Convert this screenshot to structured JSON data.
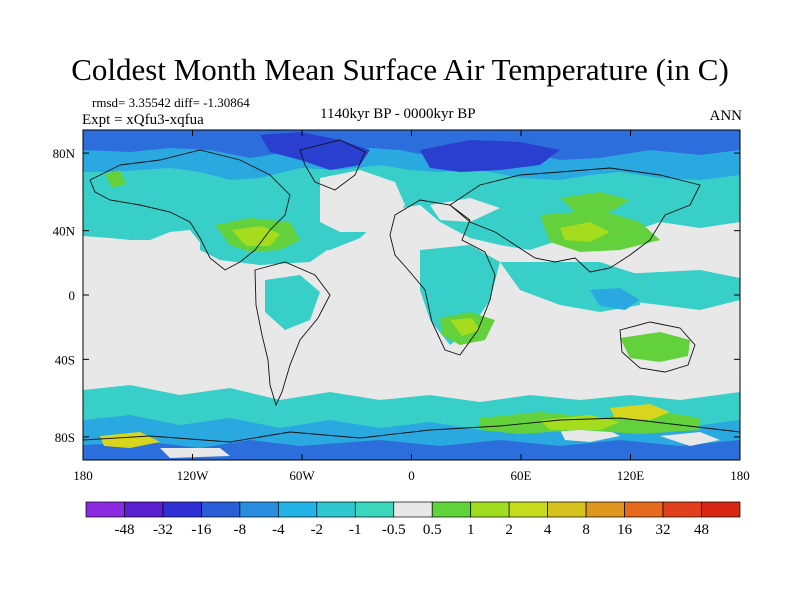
{
  "title": "Coldest Month Mean Surface Air Temperature (in C)",
  "stats": "rmsd= 3.35542 diff= -1.30864",
  "experiment": "Expt = xQfu3-xqfua",
  "period": "1140kyr BP - 0000kyr BP",
  "season": "ANN",
  "map": {
    "x_ticks": [
      "180",
      "120W",
      "60W",
      "0",
      "60E",
      "120E",
      "180"
    ],
    "y_ticks": [
      "80N",
      "40N",
      "0",
      "40S",
      "80S"
    ]
  },
  "colorbar": {
    "labels": [
      "-48",
      "-32",
      "-16",
      "-8",
      "-4",
      "-2",
      "-1",
      "-0.5",
      "0.5",
      "1",
      "2",
      "4",
      "8",
      "16",
      "32",
      "48"
    ],
    "colors": [
      "#8b2be2",
      "#5a1fd0",
      "#2f2fd6",
      "#2a5ed8",
      "#2a8ee0",
      "#22b4e6",
      "#30c8d0",
      "#3ad7bd",
      "#e8e8e8",
      "#60d23a",
      "#a0dc1e",
      "#c8dc1e",
      "#d6c21e",
      "#e0961e",
      "#e56a1e",
      "#e0401e",
      "#d82612"
    ]
  },
  "palette": {
    "neutral": "#e8e8e8",
    "cyan": "#38cfc9",
    "lightblue": "#2aa8e0",
    "blue": "#2c6edb",
    "darkblue": "#2a3ed0",
    "green": "#62d13b",
    "lime": "#a6dc1e",
    "yellow": "#d7d61c",
    "coast": "#111111"
  }
}
